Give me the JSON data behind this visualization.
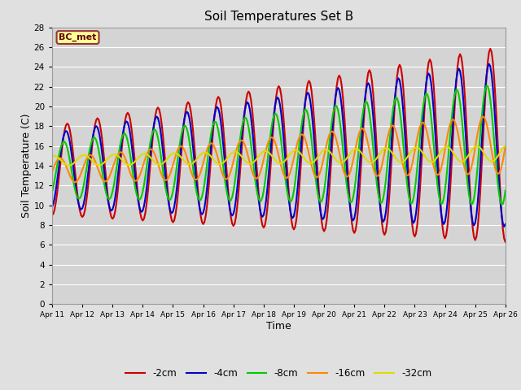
{
  "title": "Soil Temperatures Set B",
  "xlabel": "Time",
  "ylabel": "Soil Temperature (C)",
  "annotation": "BC_met",
  "legend_labels": [
    "-2cm",
    "-4cm",
    "-8cm",
    "-16cm",
    "-32cm"
  ],
  "line_colors": [
    "#cc0000",
    "#0000cc",
    "#00cc00",
    "#ff8800",
    "#dddd00"
  ],
  "ylim": [
    0,
    28
  ],
  "yticks": [
    0,
    2,
    4,
    6,
    8,
    10,
    12,
    14,
    16,
    18,
    20,
    22,
    24,
    26,
    28
  ],
  "xtick_labels": [
    "Apr 11",
    "Apr 12",
    "Apr 13",
    "Apr 14",
    "Apr 15",
    "Apr 16",
    "Apr 17",
    "Apr 18",
    "Apr 19",
    "Apr 20",
    "Apr 21",
    "Apr 22",
    "Apr 23",
    "Apr 24",
    "Apr 25",
    "Apr 26"
  ],
  "bg_color": "#e0e0e0",
  "plot_bg_color": "#d4d4d4",
  "grid_color": "#ffffff",
  "annotation_bg": "#ffff99",
  "annotation_border": "#993333",
  "annotation_text_color": "#660000"
}
